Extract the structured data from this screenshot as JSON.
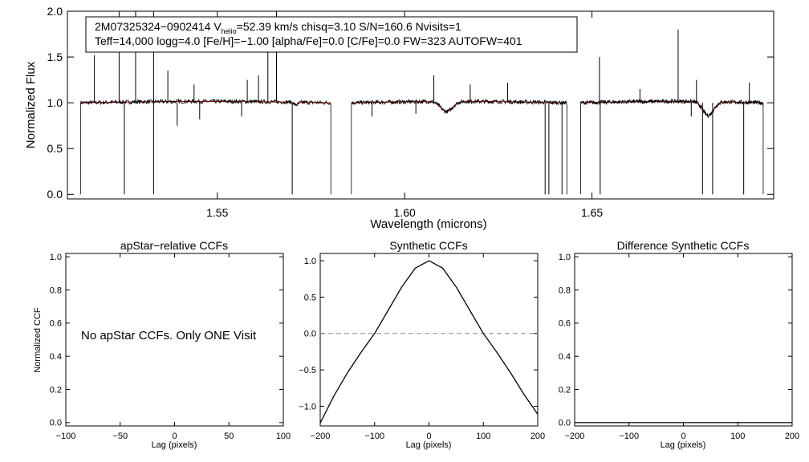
{
  "chart_data": [
    {
      "type": "line",
      "id": "spectrum",
      "info": {
        "star": "2M07325324−0902414",
        "v_prefix": "V",
        "v_sub": "helio",
        "v_rest": "=52.39 km/s  chisq=3.10  S/N=160.6  Nvisits=1",
        "line2": "Teff=14,000 logg=4.0 [Fe/H]=−1.00 [alpha/Fe]=0.0 [C/Fe]=0.0 FW=323 AUTOFW=401"
      },
      "xlabel": "Wavelength (microns)",
      "ylabel": "Normalized Flux",
      "xlim": [
        1.51,
        1.6985
      ],
      "ylim": [
        -0.05,
        2.0
      ],
      "xticks": [
        1.55,
        1.6,
        1.65
      ],
      "xtick_labels": [
        "1.55",
        "1.60",
        "1.65"
      ],
      "yticks": [
        0.0,
        0.5,
        1.0,
        1.5,
        2.0
      ],
      "ytick_labels": [
        "0.0",
        "0.5",
        "1.0",
        "1.5",
        "2.0"
      ],
      "series": [
        {
          "name": "observed spectrum",
          "color": "#000000"
        },
        {
          "name": "synthetic fit",
          "color": "#d00000"
        }
      ],
      "chips": [
        [
          1.5135,
          1.5803
        ],
        [
          1.5858,
          1.6433
        ],
        [
          1.647,
          1.6957
        ]
      ],
      "absorption_features": [
        {
          "x": 1.571,
          "depth": 0.03,
          "width": 0.0008
        },
        {
          "x": 1.6112,
          "depth": 0.11,
          "width": 0.0022
        },
        {
          "x": 1.681,
          "depth": 0.15,
          "width": 0.002
        }
      ],
      "spikes_up": [
        [
          1.5172,
          1.52
        ],
        [
          1.5238,
          2.0
        ],
        [
          1.5282,
          2.0
        ],
        [
          1.533,
          2.0
        ],
        [
          1.5368,
          1.35
        ],
        [
          1.5438,
          1.2
        ],
        [
          1.558,
          1.25
        ],
        [
          1.561,
          1.3
        ],
        [
          1.5635,
          1.85
        ],
        [
          1.5658,
          2.0
        ],
        [
          1.6078,
          1.3
        ],
        [
          1.6175,
          1.2
        ],
        [
          1.6275,
          1.22
        ],
        [
          1.652,
          1.5
        ],
        [
          1.6628,
          1.15
        ],
        [
          1.673,
          1.8
        ],
        [
          1.6779,
          1.25
        ],
        [
          1.692,
          1.22
        ]
      ],
      "spikes_down": [
        [
          1.5252,
          0.0
        ],
        [
          1.533,
          0.0
        ],
        [
          1.5393,
          0.75
        ],
        [
          1.5453,
          0.82
        ],
        [
          1.5565,
          0.85
        ],
        [
          1.57,
          0.0
        ],
        [
          1.5913,
          0.85
        ],
        [
          1.603,
          0.88
        ],
        [
          1.6375,
          0.0
        ],
        [
          1.6385,
          0.0
        ],
        [
          1.642,
          0.0
        ],
        [
          1.6522,
          0.0
        ],
        [
          1.6765,
          0.85
        ],
        [
          1.6795,
          0.0
        ],
        [
          1.6822,
          0.0
        ],
        [
          1.6905,
          0.0
        ]
      ]
    },
    {
      "type": "line",
      "id": "apstar_ccf",
      "title": "apStar−relative CCFs",
      "xlabel": "Lag (pixels)",
      "ylabel": "Normalized CCF",
      "annotation": "No apStar CCFs.  Only ONE Visit",
      "xlim": [
        -100,
        100
      ],
      "ylim": [
        -0.02,
        1.02
      ],
      "xticks": [
        -100,
        -50,
        0,
        50,
        100
      ],
      "xtick_labels": [
        "−100",
        "−50",
        "0",
        "50",
        "100"
      ],
      "yticks": [
        0.0,
        0.2,
        0.4,
        0.6,
        0.8,
        1.0
      ],
      "ytick_labels": [
        "0.0",
        "0.2",
        "0.4",
        "0.6",
        "0.8",
        "1.0"
      ],
      "series": []
    },
    {
      "type": "line",
      "id": "synthetic_ccf",
      "title": "Synthetic CCFs",
      "xlabel": "Lag (pixels)",
      "xlim": [
        -200,
        200
      ],
      "ylim": [
        -1.27,
        1.1
      ],
      "xticks": [
        -200,
        -100,
        0,
        100,
        200
      ],
      "xtick_labels": [
        "−200",
        "−100",
        "0",
        "100",
        "200"
      ],
      "yticks": [
        -1.0,
        -0.5,
        0.0,
        0.5,
        1.0
      ],
      "ytick_labels": [
        "−1.0",
        "−0.5",
        "0.0",
        "0.5",
        "1.0"
      ],
      "zero_line": true,
      "series": [
        {
          "name": "synthetic CCF",
          "color": "#000000",
          "x": [
            -200,
            -175,
            -150,
            -125,
            -100,
            -75,
            -50,
            -25,
            0,
            25,
            50,
            75,
            100,
            125,
            150,
            175,
            200
          ],
          "y": [
            -1.23,
            -0.86,
            -0.54,
            -0.26,
            0.0,
            0.32,
            0.64,
            0.9,
            1.0,
            0.9,
            0.64,
            0.32,
            0.0,
            -0.26,
            -0.54,
            -0.84,
            -1.11
          ]
        }
      ]
    },
    {
      "type": "line",
      "id": "difference_ccf",
      "title": "Difference Synthetic CCFs",
      "xlabel": "Lag (pixels)",
      "xlim": [
        -200,
        200
      ],
      "ylim": [
        -0.02,
        1.02
      ],
      "xticks": [
        -200,
        -100,
        0,
        100,
        200
      ],
      "xtick_labels": [
        "−200",
        "−100",
        "0",
        "100",
        "200"
      ],
      "yticks": [
        0.0,
        0.2,
        0.4,
        0.6,
        0.8,
        1.0
      ],
      "ytick_labels": [
        "0.0",
        "0.2",
        "0.4",
        "0.6",
        "0.8",
        "1.0"
      ],
      "series": [
        {
          "name": "difference CCF",
          "color": "#000000",
          "x": [
            -200,
            200
          ],
          "y": [
            0.0,
            0.0
          ]
        }
      ]
    }
  ]
}
